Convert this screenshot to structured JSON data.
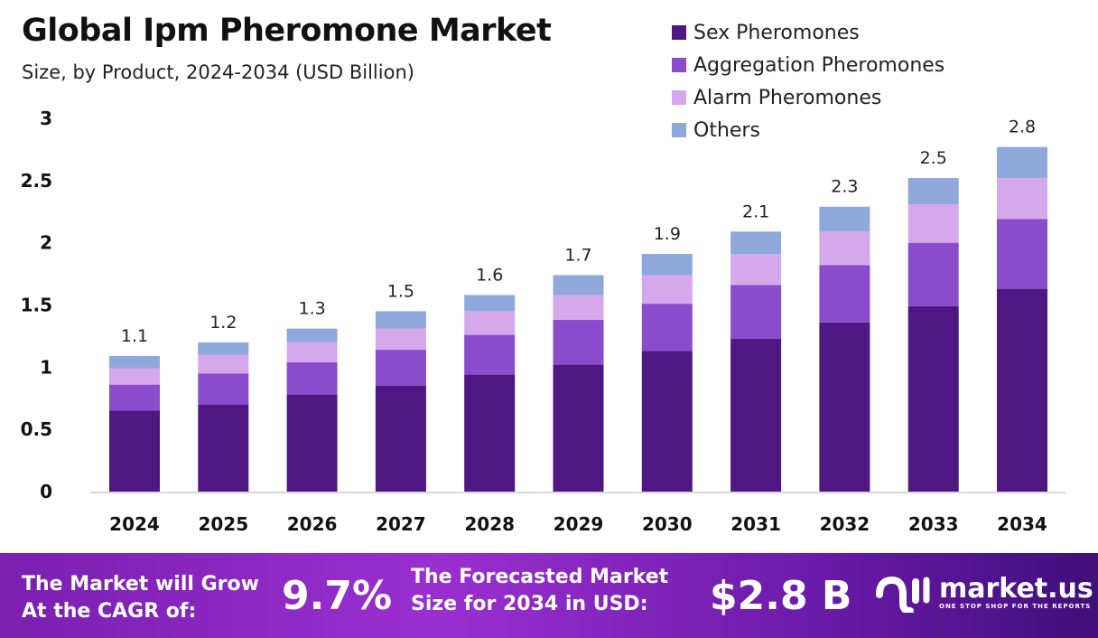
{
  "chart_data": {
    "type": "bar",
    "stacked": true,
    "title": "Global Ipm Pheromone Market",
    "subtitle": "Size, by Product, 2024-2034 (USD Billion)",
    "categories": [
      "2024",
      "2025",
      "2026",
      "2027",
      "2028",
      "2029",
      "2030",
      "2031",
      "2032",
      "2033",
      "2034"
    ],
    "series": [
      {
        "name": "Sex Pheromones",
        "color": "#4e1782",
        "values": [
          0.65,
          0.7,
          0.78,
          0.85,
          0.94,
          1.02,
          1.13,
          1.23,
          1.36,
          1.49,
          1.63
        ]
      },
      {
        "name": "Aggregation Pheromones",
        "color": "#8a4bcc",
        "values": [
          0.21,
          0.25,
          0.26,
          0.29,
          0.32,
          0.36,
          0.38,
          0.43,
          0.46,
          0.51,
          0.56
        ]
      },
      {
        "name": "Alarm Pheromones",
        "color": "#d4a8ea",
        "values": [
          0.13,
          0.15,
          0.16,
          0.17,
          0.19,
          0.2,
          0.23,
          0.25,
          0.27,
          0.31,
          0.33
        ]
      },
      {
        "name": "Others",
        "color": "#8ea8dc",
        "values": [
          0.1,
          0.1,
          0.11,
          0.14,
          0.13,
          0.16,
          0.17,
          0.18,
          0.2,
          0.21,
          0.25
        ]
      }
    ],
    "totals": [
      "1.1",
      "1.2",
      "1.3",
      "1.5",
      "1.6",
      "1.7",
      "1.9",
      "2.1",
      "2.3",
      "2.5",
      "2.8"
    ],
    "yticks": [
      "0",
      "0.5",
      "1",
      "1.5",
      "2",
      "2.5",
      "3"
    ],
    "ylim": [
      0,
      3
    ],
    "grid": false,
    "legend": "top-right"
  },
  "footer": {
    "cagr_label_1": "The Market will Grow",
    "cagr_label_2": "At the CAGR of:",
    "cagr_value": "9.7%",
    "size_label_1": "The Forecasted Market",
    "size_label_2": "Size for 2034 in USD:",
    "size_value": "$2.8 B",
    "logo_name": "market.us",
    "logo_tagline": "ONE STOP SHOP FOR THE REPORTS"
  }
}
